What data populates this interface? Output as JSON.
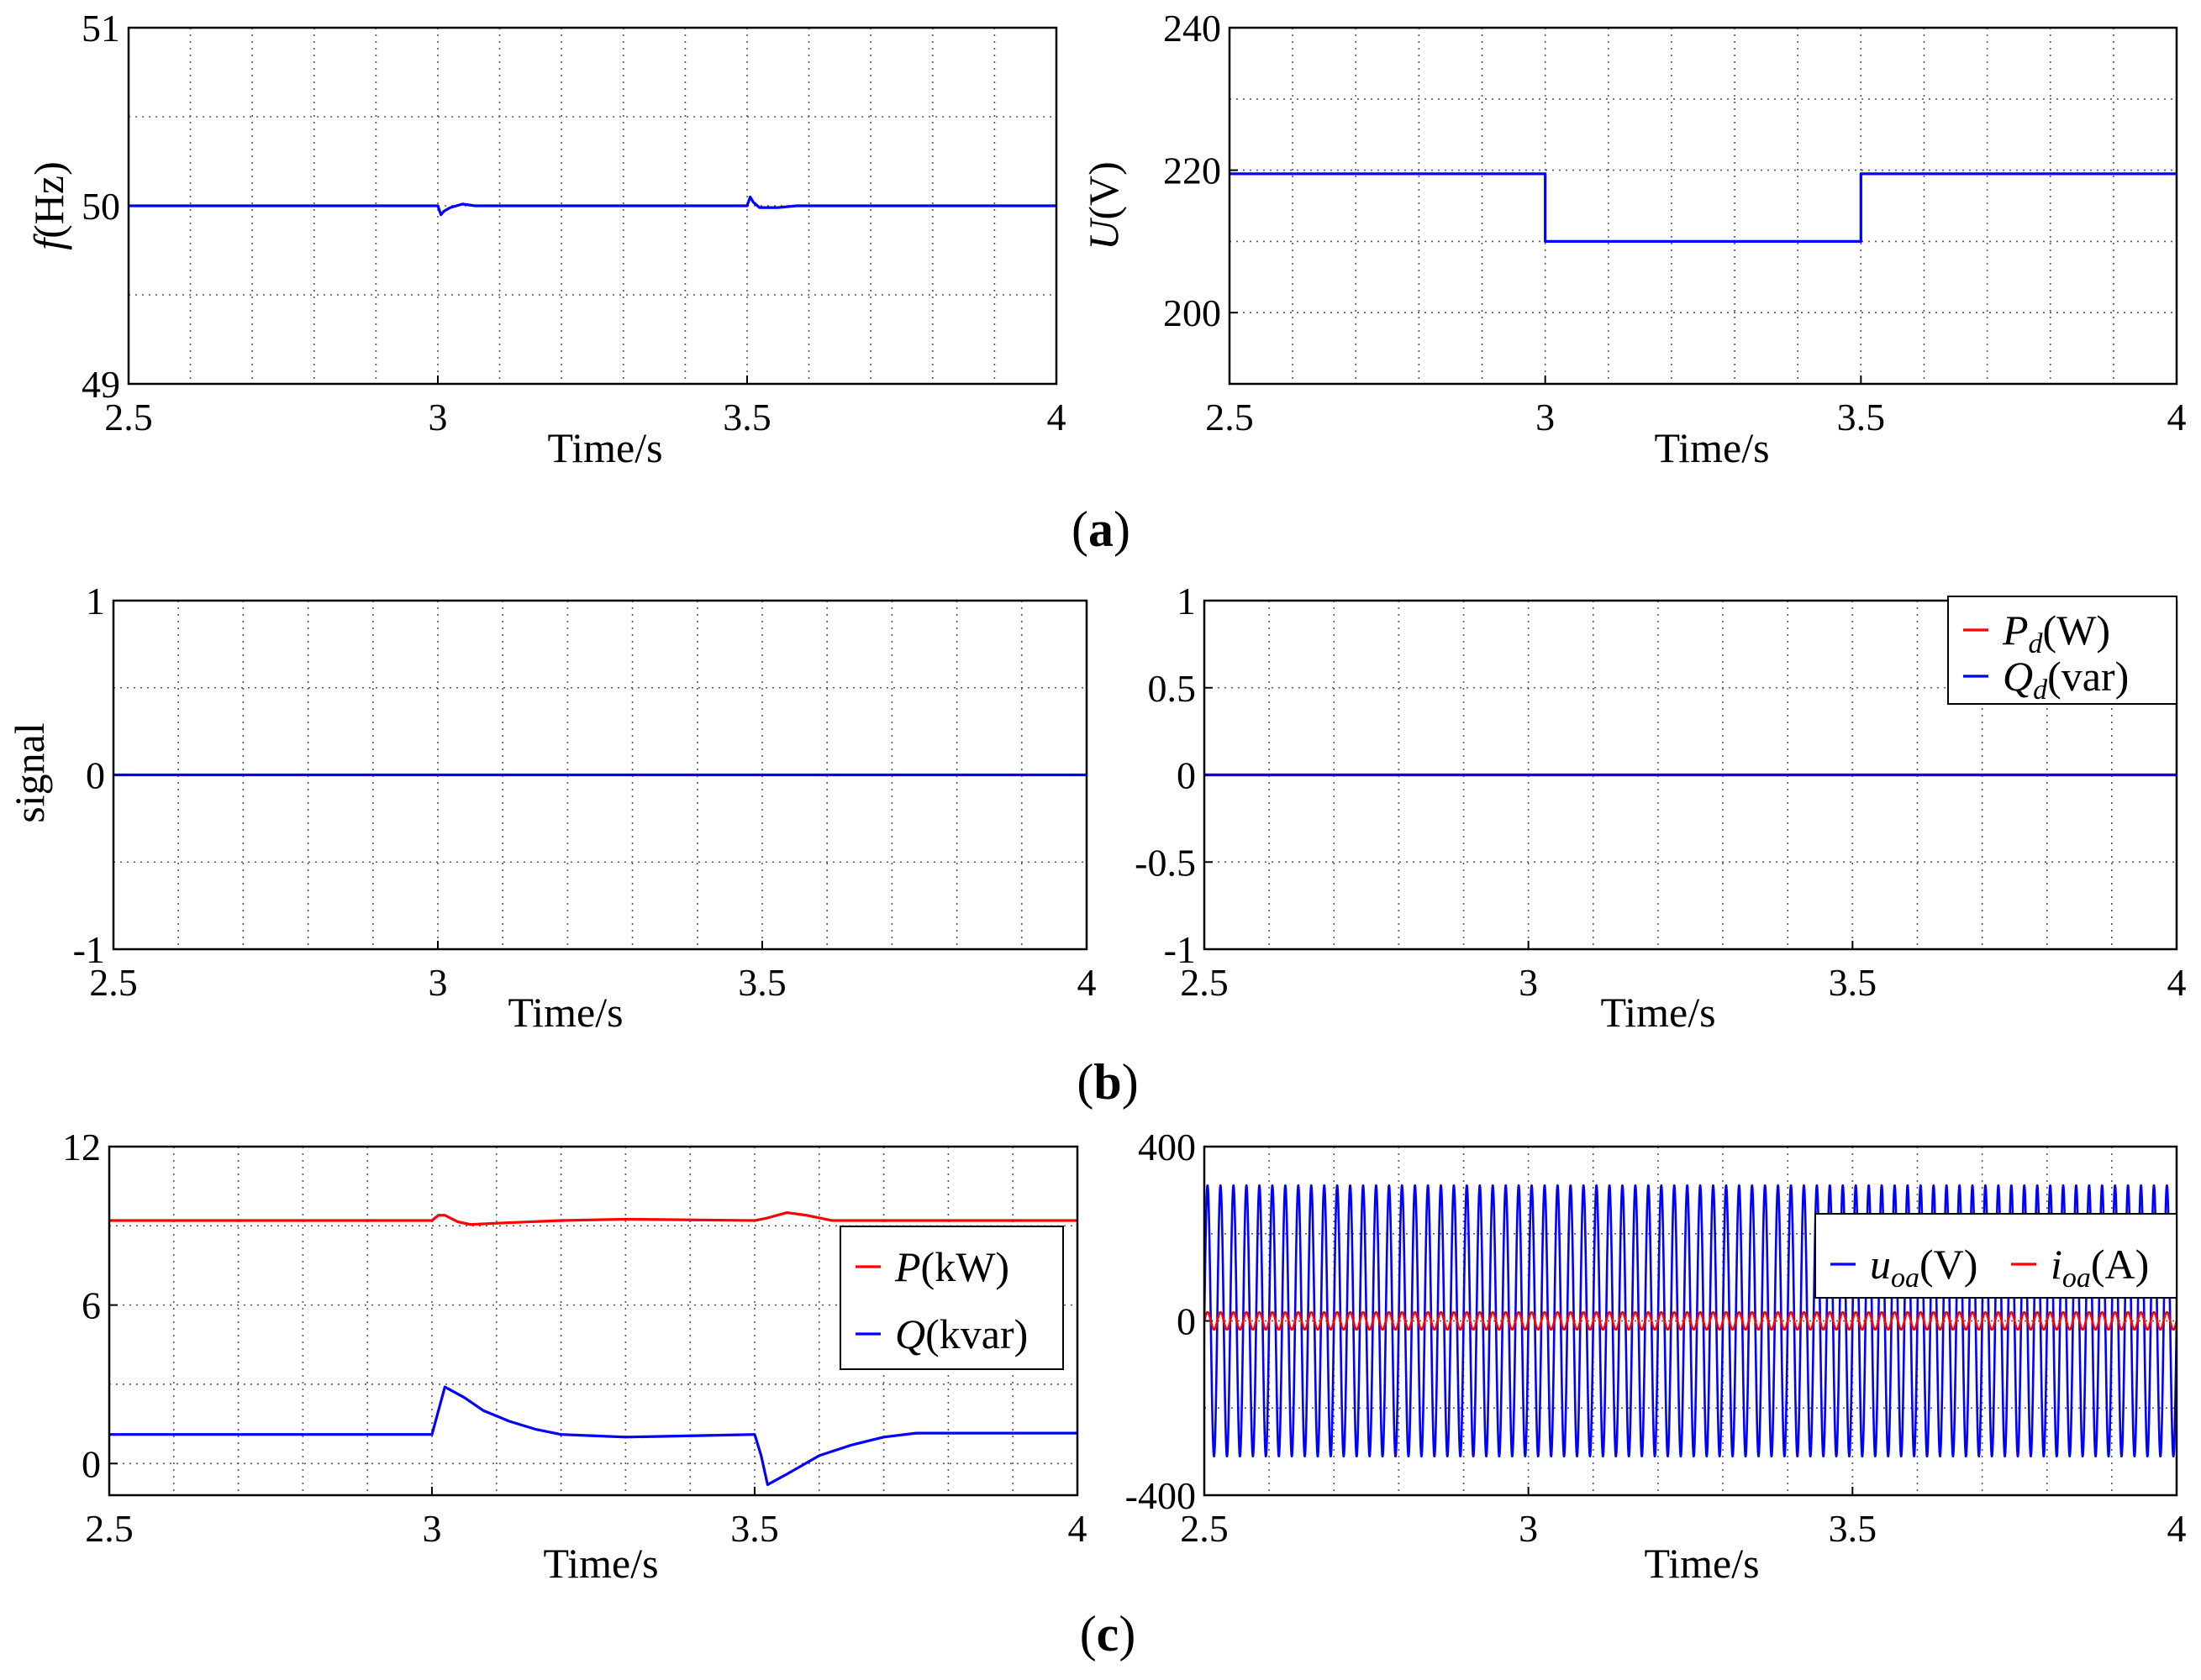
{
  "chart_data": [
    {
      "type": "line",
      "panel": "a-left",
      "xlabel": "Time/s",
      "ylabel_main": "f",
      "ylabel_unit": "(Hz)",
      "xlim": [
        2.5,
        4
      ],
      "ylim": [
        49,
        51
      ],
      "xticks": [
        2.5,
        3,
        3.5,
        4
      ],
      "xtick_labels": [
        "2.5",
        "3",
        "3.5",
        "4"
      ],
      "yticks": [
        49,
        50,
        51
      ],
      "ytick_labels": [
        "49",
        "50",
        "51"
      ],
      "xgrid_step": 0.1,
      "ygrid_step": 0.5,
      "series": [
        {
          "name": "f",
          "color": "#0000ff",
          "x": [
            2.5,
            3.0,
            3.005,
            3.01,
            3.02,
            3.04,
            3.06,
            3.08,
            3.5,
            3.505,
            3.51,
            3.52,
            3.55,
            3.58,
            3.62,
            4.0
          ],
          "y": [
            50,
            50,
            49.95,
            49.97,
            49.99,
            50.01,
            50.0,
            50.0,
            50.0,
            50.05,
            50.02,
            49.99,
            49.99,
            50.0,
            50.0,
            50.0
          ]
        }
      ]
    },
    {
      "type": "line",
      "panel": "a-right",
      "xlabel": "Time/s",
      "ylabel_main": "U",
      "ylabel_unit": "(V)",
      "xlim": [
        2.5,
        4
      ],
      "ylim": [
        190,
        240
      ],
      "xticks": [
        2.5,
        3,
        3.5,
        4
      ],
      "xtick_labels": [
        "2.5",
        "3",
        "3.5",
        "4"
      ],
      "yticks": [
        200,
        220,
        240
      ],
      "ytick_labels": [
        "200",
        "220",
        "240"
      ],
      "xgrid_step": 0.1,
      "ygrid_step": 10,
      "series": [
        {
          "name": "U",
          "color": "#0000ff",
          "x": [
            2.5,
            2.999,
            3.0,
            3.0,
            3.5,
            3.5,
            4.0
          ],
          "y": [
            219.5,
            219.5,
            219.5,
            210,
            210,
            219.5,
            219.5
          ]
        }
      ]
    },
    {
      "type": "line",
      "panel": "b-left",
      "xlabel": "Time/s",
      "ylabel": "signal",
      "xlim": [
        2.5,
        4
      ],
      "ylim": [
        -1,
        1
      ],
      "xticks": [
        2.5,
        3,
        3.5,
        4
      ],
      "xtick_labels": [
        "2.5",
        "3",
        "3.5",
        "4"
      ],
      "yticks": [
        -1,
        0,
        1
      ],
      "ytick_labels": [
        "-1",
        "0",
        "1"
      ],
      "xgrid_step": 0.1,
      "ygrid_step": 0.5,
      "series": [
        {
          "name": "signal",
          "color": "#0000ff",
          "x": [
            2.5,
            4.0
          ],
          "y": [
            0,
            0
          ]
        }
      ]
    },
    {
      "type": "line",
      "panel": "b-right",
      "xlabel": "Time/s",
      "xlim": [
        2.5,
        4
      ],
      "ylim": [
        -1,
        1
      ],
      "xticks": [
        2.5,
        3,
        3.5,
        4
      ],
      "xtick_labels": [
        "2.5",
        "3",
        "3.5",
        "4"
      ],
      "yticks": [
        -1,
        -0.5,
        0,
        0.5,
        1
      ],
      "ytick_labels": [
        "-1",
        "-0.5",
        "0",
        "0.5",
        "1"
      ],
      "xgrid_step": 0.1,
      "ygrid_step": 0.5,
      "legend": [
        {
          "main": "P",
          "sub": "d",
          "unit": "(W)",
          "color": "#ff0000"
        },
        {
          "main": "Q",
          "sub": "d",
          "unit": "(var)",
          "color": "#0000ff"
        }
      ],
      "series": [
        {
          "name": "Pd(W)",
          "color": "#ff0000",
          "x": [
            2.5,
            4.0
          ],
          "y": [
            0,
            0
          ]
        },
        {
          "name": "Qd(var)",
          "color": "#0000ff",
          "x": [
            2.5,
            4.0
          ],
          "y": [
            0,
            0
          ]
        }
      ]
    },
    {
      "type": "line",
      "panel": "c-left",
      "xlabel": "Time/s",
      "xlim": [
        2.5,
        4
      ],
      "ylim": [
        -1.2,
        12
      ],
      "xticks": [
        2.5,
        3,
        3.5,
        4
      ],
      "xtick_labels": [
        "2.5",
        "3",
        "3.5",
        "4"
      ],
      "yticks": [
        0,
        6,
        12
      ],
      "ytick_labels": [
        "0",
        "6",
        "12"
      ],
      "xgrid_step": 0.1,
      "ygrid_step": 3,
      "legend": [
        {
          "main": "P",
          "sub": "",
          "unit": "(kW)",
          "color": "#ff0000"
        },
        {
          "main": "Q",
          "sub": "",
          "unit": "(kvar)",
          "color": "#0000ff"
        }
      ],
      "series": [
        {
          "name": "P(kW)",
          "color": "#ff0000",
          "x": [
            2.5,
            3.0,
            3.01,
            3.02,
            3.04,
            3.06,
            3.1,
            3.2,
            3.3,
            3.5,
            3.52,
            3.55,
            3.58,
            3.62,
            4.0
          ],
          "y": [
            9.2,
            9.2,
            9.4,
            9.4,
            9.15,
            9.05,
            9.1,
            9.2,
            9.25,
            9.2,
            9.3,
            9.5,
            9.4,
            9.2,
            9.2
          ]
        },
        {
          "name": "Q(kvar)",
          "color": "#0000ff",
          "x": [
            2.5,
            3.0,
            3.01,
            3.02,
            3.05,
            3.08,
            3.12,
            3.16,
            3.2,
            3.25,
            3.3,
            3.5,
            3.51,
            3.52,
            3.55,
            3.6,
            3.65,
            3.7,
            3.75,
            4.0
          ],
          "y": [
            1.1,
            1.1,
            2.0,
            2.9,
            2.5,
            2.0,
            1.6,
            1.3,
            1.1,
            1.05,
            1.0,
            1.1,
            0.3,
            -0.8,
            -0.4,
            0.3,
            0.7,
            1.0,
            1.15,
            1.15
          ]
        }
      ]
    },
    {
      "type": "line",
      "panel": "c-right",
      "xlabel": "Time/s",
      "xlim": [
        2.5,
        4
      ],
      "ylim": [
        -400,
        400
      ],
      "xticks": [
        2.5,
        3,
        3.5,
        4
      ],
      "xtick_labels": [
        "2.5",
        "3",
        "3.5",
        "4"
      ],
      "yticks": [
        -400,
        0,
        400
      ],
      "ytick_labels": [
        "-400",
        "0",
        "400"
      ],
      "xgrid_step": 0.1,
      "ygrid_step": 200,
      "legend": [
        {
          "main": "u",
          "sub": "oa",
          "unit": "(V)",
          "color": "#0000ff"
        },
        {
          "main": "i",
          "sub": "oa",
          "unit": "(A)",
          "color": "#ff0000"
        }
      ],
      "series": [
        {
          "name": "uoa(V)",
          "color": "#0000ff",
          "kind": "sine",
          "amplitude": 311,
          "frequency": 50,
          "offset": 0
        },
        {
          "name": "ioa(A)",
          "color": "#ff0000",
          "kind": "sine",
          "amplitude": 20,
          "frequency": 50,
          "offset": 0
        }
      ]
    }
  ],
  "captions": {
    "a": "a",
    "b": "b",
    "c": "c"
  }
}
